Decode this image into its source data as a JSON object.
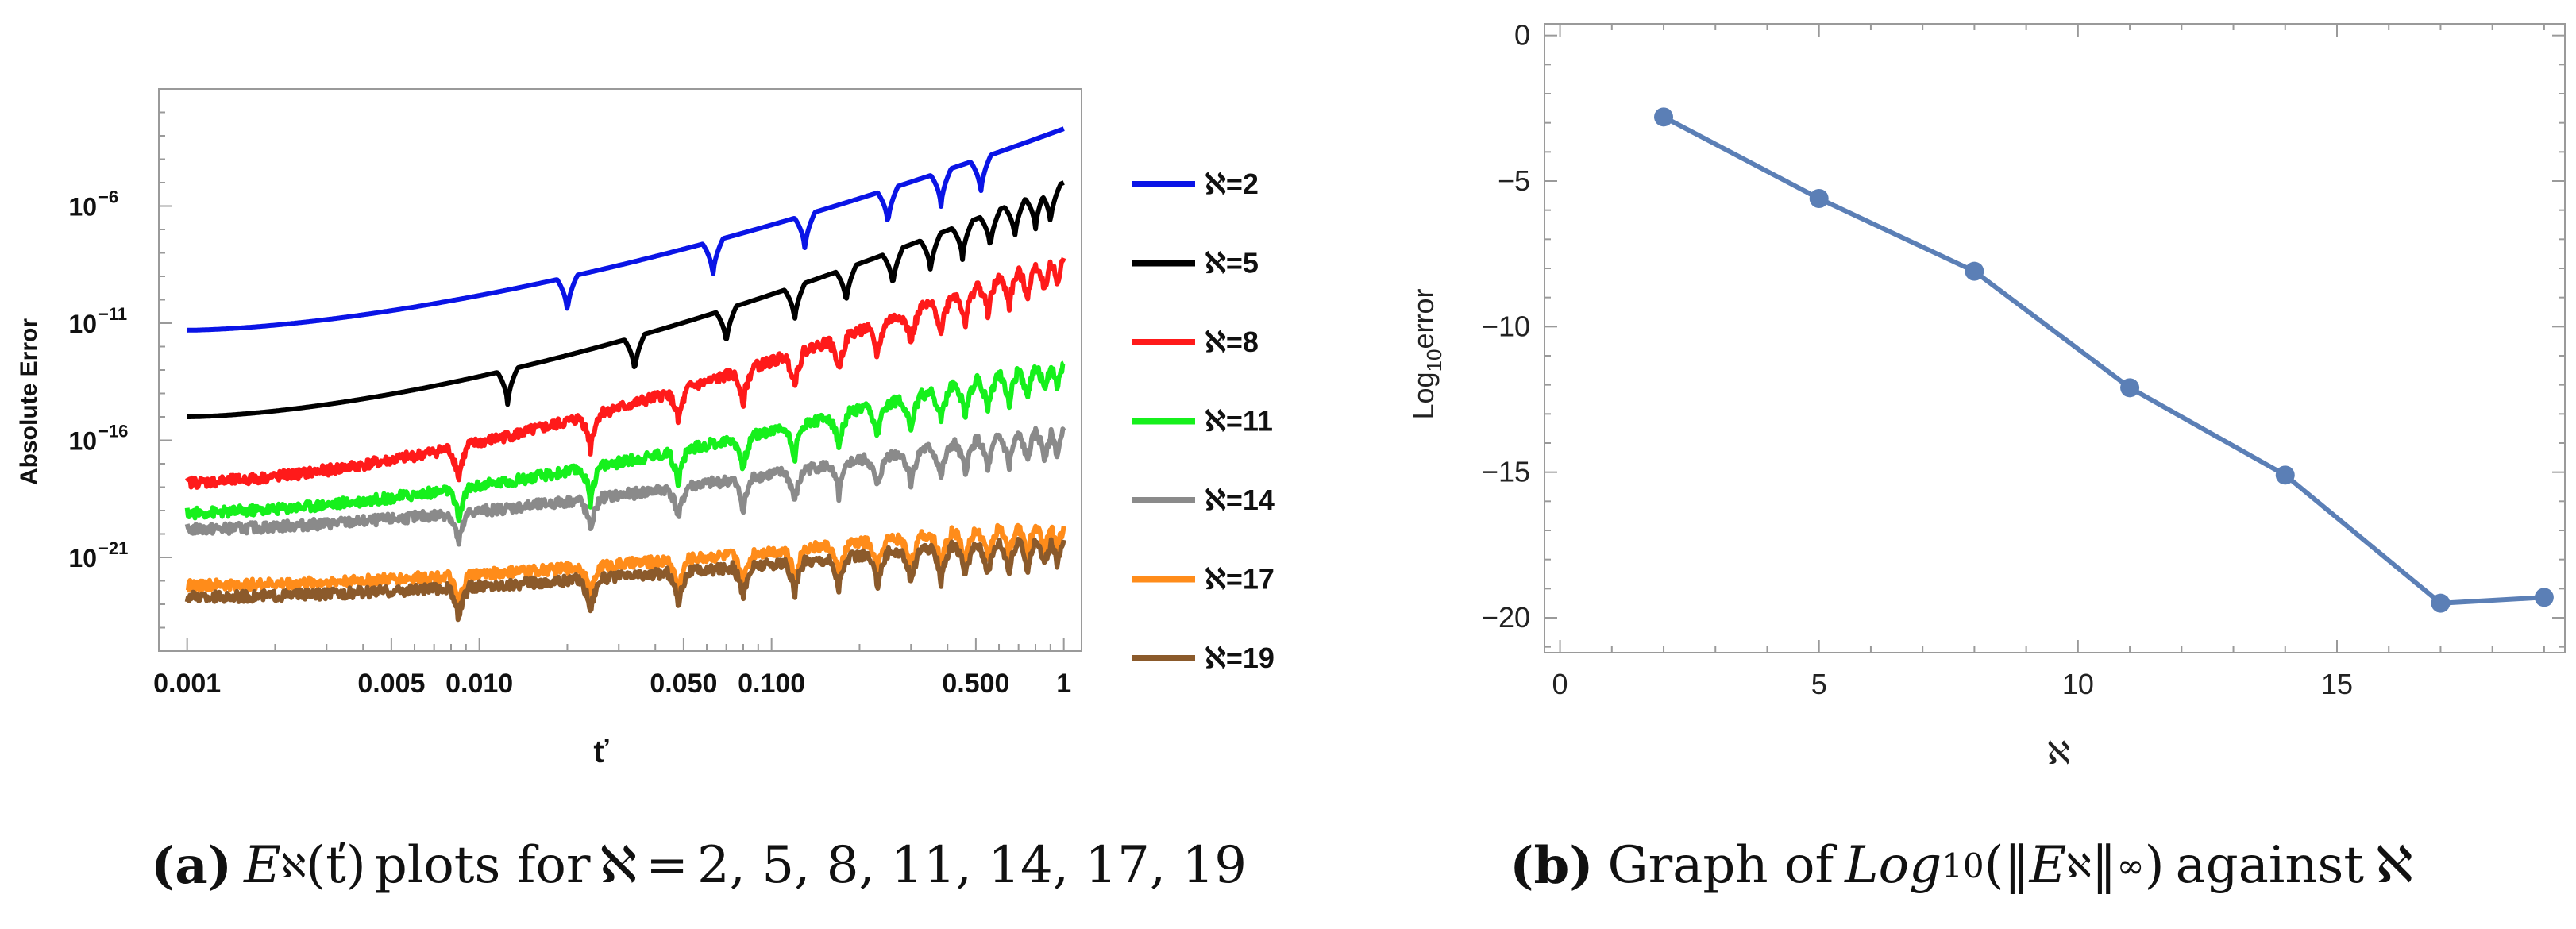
{
  "chart_data": [
    {
      "type": "line",
      "panel": "a",
      "xscale": "log",
      "yscale": "log",
      "xlabel": "ť",
      "ylabel": "Absolute Error",
      "xlim": [
        0.0008,
        1.15
      ],
      "ylim_log10": [
        -25,
        -1
      ],
      "x_ticks": [
        {
          "label": "0.001",
          "value": 0.001
        },
        {
          "label": "0.005",
          "value": 0.005
        },
        {
          "label": "0.010",
          "value": 0.01
        },
        {
          "label": "0.050",
          "value": 0.05
        },
        {
          "label": "0.100",
          "value": 0.1
        },
        {
          "label": "0.500",
          "value": 0.5
        },
        {
          "label": "1",
          "value": 1
        }
      ],
      "y_ticks": [
        {
          "base": "10",
          "exp": "−6",
          "log10": -6
        },
        {
          "base": "10",
          "exp": "−11",
          "log10": -11
        },
        {
          "base": "10",
          "exp": "−16",
          "log10": -16
        },
        {
          "base": "10",
          "exp": "−21",
          "log10": -21
        }
      ],
      "legend_position": "right",
      "series": [
        {
          "name": "ℵ=2",
          "color": "#0a14e6",
          "start_log10": -11.3,
          "end_log10": -2.7,
          "dips": [
            0.02,
            0.063,
            0.13,
            0.25,
            0.38,
            0.52
          ]
        },
        {
          "name": "ℵ=5",
          "color": "#000000",
          "start_log10": -15.0,
          "end_log10": -5.0,
          "dips": [
            0.0125,
            0.034,
            0.07,
            0.12,
            0.18,
            0.26,
            0.35,
            0.45,
            0.56,
            0.68,
            0.8,
            0.9
          ]
        },
        {
          "name": "ℵ=8",
          "color": "#ff1a1a",
          "start_log10": -17.8,
          "end_log10": -7.9,
          "dips": [
            0.0085,
            0.024,
            0.048,
            0.08,
            0.12,
            0.17,
            0.23,
            0.3,
            0.38,
            0.46,
            0.55,
            0.65,
            0.75,
            0.86,
            0.95
          ]
        },
        {
          "name": "ℵ=11",
          "color": "#16f01c",
          "start_log10": -19.1,
          "end_log10": -12.4,
          "dips": [
            0.0085,
            0.024,
            0.048,
            0.08,
            0.12,
            0.17,
            0.23,
            0.3,
            0.38,
            0.46,
            0.55,
            0.65,
            0.75,
            0.86,
            0.95
          ]
        },
        {
          "name": "ℵ=14",
          "color": "#8a8a8a",
          "start_log10": -19.8,
          "end_log10": -15.3,
          "dips": [
            0.0085,
            0.024,
            0.048,
            0.08,
            0.12,
            0.17,
            0.23,
            0.3,
            0.38,
            0.46,
            0.55,
            0.65,
            0.75,
            0.86,
            0.95
          ]
        },
        {
          "name": "ℵ=17",
          "color": "#ff8c1a",
          "start_log10": -22.2,
          "end_log10": -19.4,
          "dips": [
            0.0085,
            0.024,
            0.048,
            0.08,
            0.12,
            0.17,
            0.23,
            0.3,
            0.38,
            0.46,
            0.55,
            0.65,
            0.75,
            0.86,
            0.95
          ]
        },
        {
          "name": "ℵ=19",
          "color": "#8b5a2b",
          "start_log10": -22.7,
          "end_log10": -20.0,
          "dips": [
            0.0085,
            0.024,
            0.048,
            0.08,
            0.12,
            0.17,
            0.23,
            0.3,
            0.38,
            0.46,
            0.55,
            0.65,
            0.75,
            0.86,
            0.95
          ]
        }
      ]
    },
    {
      "type": "line",
      "panel": "b",
      "xlabel": "ℵ",
      "ylabel_prefix": "Log",
      "ylabel_sub": "10",
      "ylabel_suffix": "error",
      "xlim": [
        -0.3,
        19.4
      ],
      "ylim": [
        -21.2,
        0.4
      ],
      "x_ticks": [
        "0",
        "5",
        "10",
        "15"
      ],
      "x_tick_values": [
        0,
        5,
        10,
        15
      ],
      "y_ticks": [
        "0",
        "−5",
        "−10",
        "−15",
        "−20"
      ],
      "y_tick_values": [
        0,
        -5,
        -10,
        -15,
        -20
      ],
      "color": "#5b7fb6",
      "x": [
        2,
        5,
        8,
        11,
        14,
        17,
        19
      ],
      "y": [
        -2.8,
        -5.6,
        -8.1,
        -12.1,
        -15.1,
        -19.5,
        -19.3
      ]
    }
  ],
  "captions": {
    "a": {
      "label": "(a)",
      "lhs": "E",
      "lhs_sub": "ℵ",
      "arg": "(ť)",
      "text": "plots for",
      "aleph": "ℵ",
      "eq": "=",
      "values": "2, 5, 8, 11, 14, 17, 19"
    },
    "b": {
      "label": "(b)",
      "text1": "Graph of",
      "func": "Log",
      "func_sub": "10",
      "norm_open": "(‖",
      "norm_var": "E",
      "norm_sub": "ℵ",
      "norm_close": "‖",
      "norm_inf": "∞",
      "close": ")",
      "text2": "against",
      "aleph": "ℵ"
    }
  }
}
